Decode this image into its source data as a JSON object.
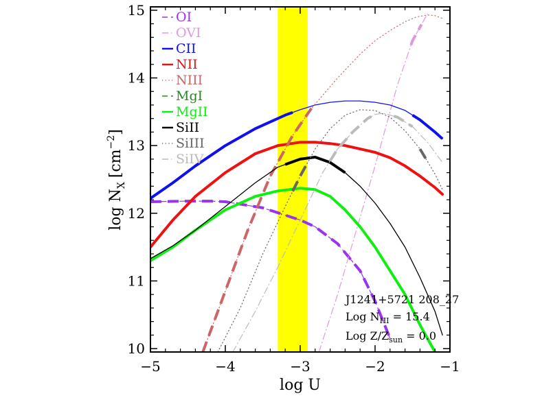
{
  "chart_data": {
    "type": "line",
    "xlabel": "log U",
    "ylabel_main": "log N",
    "ylabel_sub": "X",
    "ylabel_unit_pre": "[cm",
    "ylabel_unit_sup": "−2",
    "ylabel_unit_post": "]",
    "xlim": [
      -5,
      -1
    ],
    "ylim": [
      9.95,
      15.05
    ],
    "x_ticks": [
      {
        "v": -5,
        "label": "−5"
      },
      {
        "v": -4,
        "label": "−4"
      },
      {
        "v": -3,
        "label": "−3"
      },
      {
        "v": -2,
        "label": "−2"
      },
      {
        "v": -1,
        "label": "−1"
      }
    ],
    "y_ticks": [
      {
        "v": 10,
        "label": "10"
      },
      {
        "v": 11,
        "label": "11"
      },
      {
        "v": 12,
        "label": "12"
      },
      {
        "v": 13,
        "label": "13"
      },
      {
        "v": 14,
        "label": "14"
      },
      {
        "v": 15,
        "label": "15"
      }
    ],
    "shaded_band": {
      "x": [
        -3.3,
        -2.9
      ],
      "color": "#ffff00"
    },
    "annotations": {
      "line1": "J1241+5721 208_27",
      "line2_pre": "Log N",
      "line2_sub": "HI",
      "line2_post": " = 15.4",
      "line3_pre": "Log Z/Z",
      "line3_sub": "sun",
      "line3_post": " = 0.0"
    },
    "series": [
      {
        "name": "OI",
        "color": "#9933ee",
        "style": "dash",
        "width": 1.2,
        "x": [
          -5,
          -4.5,
          -4.2,
          -4.0,
          -3.5,
          -3.0,
          -2.8,
          -2.5,
          -2.2,
          -2.0,
          -1.8
        ],
        "y": [
          12.17,
          12.18,
          12.18,
          12.17,
          12.08,
          11.9,
          11.8,
          11.55,
          11.15,
          10.7,
          10.15
        ],
        "thick": [
          [
            -5,
            -1.8
          ]
        ]
      },
      {
        "name": "OVI",
        "color": "#dd99dd",
        "style": "dashdot",
        "width": 1.2,
        "x": [
          -2.75,
          -2.5,
          -2.0,
          -1.7,
          -1.5,
          -1.4,
          -1.3
        ],
        "y": [
          9.95,
          10.8,
          12.7,
          13.9,
          14.55,
          14.75,
          14.95
        ],
        "thick": [
          [
            -1.52,
            -1.38
          ]
        ]
      },
      {
        "name": "CII",
        "color": "#1010ee",
        "style": "solid",
        "width": 1.3,
        "x": [
          -5,
          -4.7,
          -4.4,
          -4.0,
          -3.6,
          -3.2,
          -3.0,
          -2.8,
          -2.6,
          -2.4,
          -2.2,
          -2.0,
          -1.8,
          -1.6,
          -1.4,
          -1.2,
          -1.1
        ],
        "y": [
          12.22,
          12.45,
          12.7,
          13.0,
          13.25,
          13.45,
          13.53,
          13.6,
          13.64,
          13.66,
          13.66,
          13.64,
          13.6,
          13.52,
          13.38,
          13.2,
          13.1
        ],
        "thick": [
          [
            -5,
            -3.1
          ],
          [
            -1.5,
            -1.1
          ]
        ]
      },
      {
        "name": "NII",
        "color": "#ee1111",
        "style": "solid",
        "width": 4,
        "x": [
          -5,
          -4.7,
          -4.4,
          -4.0,
          -3.6,
          -3.3,
          -3.0,
          -2.8,
          -2.6,
          -2.4,
          -2.2,
          -2.0,
          -1.8,
          -1.6,
          -1.4,
          -1.2,
          -1.1
        ],
        "y": [
          11.5,
          11.9,
          12.25,
          12.6,
          12.88,
          13.0,
          13.05,
          13.05,
          13.03,
          13.0,
          12.95,
          12.9,
          12.82,
          12.7,
          12.55,
          12.38,
          12.28
        ],
        "thick": [
          [
            -5,
            -1.1
          ]
        ]
      },
      {
        "name": "NIII",
        "color": "#cc6666",
        "style": "dot",
        "width": 1.2,
        "x": [
          -4.3,
          -4.0,
          -3.7,
          -3.4,
          -3.1,
          -2.85,
          -2.5,
          -2.2,
          -2.0,
          -1.8,
          -1.6,
          -1.45,
          -1.3,
          -1.2,
          -1.1
        ],
        "y": [
          9.95,
          10.85,
          11.75,
          12.55,
          13.15,
          13.55,
          14.0,
          14.35,
          14.55,
          14.7,
          14.83,
          14.9,
          14.93,
          14.92,
          14.88
        ],
        "thick": [
          [
            -4.3,
            -2.85
          ]
        ]
      },
      {
        "name": "MgI",
        "color": "#228822",
        "style": "dash",
        "width": 1.2,
        "x": [],
        "y": [],
        "thick": []
      },
      {
        "name": "MgII",
        "color": "#11ee11",
        "style": "solid",
        "width": 4,
        "x": [
          -5,
          -4.7,
          -4.4,
          -4.0,
          -3.6,
          -3.3,
          -3.0,
          -2.8,
          -2.6,
          -2.4,
          -2.2,
          -2.0,
          -1.8,
          -1.6,
          -1.4,
          -1.3,
          -1.2
        ],
        "y": [
          11.3,
          11.5,
          11.75,
          12.05,
          12.25,
          12.33,
          12.37,
          12.35,
          12.25,
          12.05,
          11.8,
          11.5,
          11.15,
          10.8,
          10.35,
          10.15,
          9.95
        ],
        "thick": [
          [
            -5,
            -1.2
          ]
        ]
      },
      {
        "name": "SiII",
        "color": "#000000",
        "style": "solid",
        "width": 1.3,
        "x": [
          -5,
          -4.7,
          -4.4,
          -4.0,
          -3.6,
          -3.3,
          -3.0,
          -2.8,
          -2.6,
          -2.4,
          -2.2,
          -2.0,
          -1.8,
          -1.6,
          -1.4,
          -1.2,
          -1.1
        ],
        "y": [
          11.33,
          11.52,
          11.75,
          12.1,
          12.45,
          12.68,
          12.8,
          12.83,
          12.75,
          12.6,
          12.4,
          12.15,
          11.85,
          11.5,
          11.05,
          10.55,
          10.2
        ],
        "thick": [
          [
            -3.2,
            -2.4
          ]
        ]
      },
      {
        "name": "SiIII",
        "color": "#666666",
        "style": "dot",
        "width": 1.2,
        "x": [
          -4.1,
          -3.8,
          -3.5,
          -3.2,
          -3.0,
          -2.8,
          -2.6,
          -2.4,
          -2.2,
          -2.0,
          -1.8,
          -1.6,
          -1.4,
          -1.2,
          -1.1
        ],
        "y": [
          9.95,
          10.6,
          11.4,
          12.1,
          12.55,
          12.95,
          13.25,
          13.45,
          13.53,
          13.52,
          13.42,
          13.22,
          12.95,
          12.58,
          12.35
        ],
        "thick": [
          [
            -3.1,
            -2.9
          ],
          [
            -1.4,
            -1.3
          ]
        ]
      },
      {
        "name": "SiIV",
        "color": "#bbbbbb",
        "style": "dashdot",
        "width": 1.2,
        "x": [
          -3.9,
          -3.6,
          -3.3,
          -3.0,
          -2.7,
          -2.5,
          -2.3,
          -2.1,
          -2.0,
          -1.9,
          -1.7,
          -1.5,
          -1.3,
          -1.1
        ],
        "y": [
          9.95,
          10.55,
          11.2,
          11.9,
          12.6,
          12.95,
          13.2,
          13.4,
          13.46,
          13.48,
          13.42,
          13.28,
          13.05,
          12.75
        ],
        "thick": [
          [
            -2.6,
            -2.05
          ],
          [
            -1.75,
            -1.5
          ]
        ]
      }
    ]
  }
}
